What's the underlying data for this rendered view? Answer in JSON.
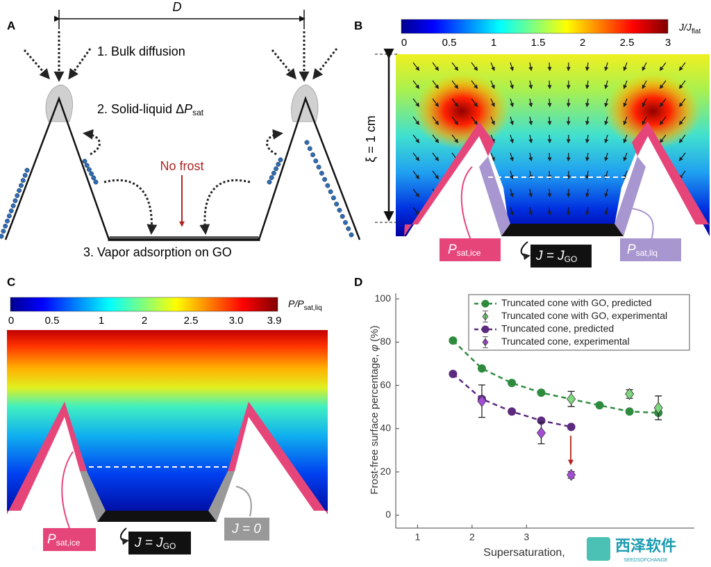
{
  "panels": {
    "A": {
      "letter": "A",
      "dimension": "D",
      "step1": "1. Bulk diffusion",
      "step2": "2. Solid-liquid Δ",
      "step2_symbol": "P",
      "step2_sub": "sat",
      "no_frost": "No frost",
      "step3": "3. Vapor adsorption on GO"
    },
    "B": {
      "letter": "B",
      "colorbar_ticks": [
        "0",
        "0.5",
        "1",
        "1.5",
        "2",
        "2.5",
        "3"
      ],
      "colorbar_label": "J/J",
      "colorbar_label_sub": "flat",
      "scale": "ξ = 1 cm",
      "label_ice": "P",
      "label_ice_sub": "sat,ice",
      "label_go": "J = J",
      "label_go_sub": "GO",
      "label_liq": "P",
      "label_liq_sub": "sat,liq"
    },
    "C": {
      "letter": "C",
      "colorbar_ticks": [
        "0",
        "0.5",
        "1",
        "2",
        "2.5",
        "3.0",
        "3.9"
      ],
      "colorbar_label": "P/P",
      "colorbar_label_sub": "sat,liq",
      "label_ice": "P",
      "label_ice_sub": "sat,ice",
      "label_go": "J = J",
      "label_go_sub": "GO",
      "label_zero": "J = 0"
    },
    "D": {
      "letter": "D"
    }
  },
  "chart_data": {
    "type": "scatter",
    "x_label": "Supersaturation,",
    "y_label": "Frost-free surface percentage, ",
    "y_label_symbol": "φ",
    "y_label_unit": " (%)",
    "xlim": [
      0.6,
      6.08
    ],
    "xticks": [
      1,
      2,
      3
    ],
    "ylim": [
      -6,
      102.6
    ],
    "yticks": [
      0,
      20,
      40,
      60,
      80,
      100
    ],
    "series": [
      {
        "name": "Truncated cone with GO, predicted",
        "color": "#2e8b3e",
        "marker": "circle",
        "dashed": true,
        "x": [
          1.65,
          2.18,
          2.73,
          3.27,
          4.34,
          4.89,
          5.42
        ],
        "values": [
          80.7,
          67.8,
          61.1,
          56.6,
          50.8,
          47.9,
          47.3
        ]
      },
      {
        "name": "Truncated cone with GO, experimental",
        "color": "#7fd67f",
        "marker": "diamond",
        "dashed": false,
        "x": [
          3.82,
          4.89,
          5.42
        ],
        "values": [
          53.7,
          56,
          49.6
        ],
        "errors": [
          3.5,
          2,
          5.5
        ]
      },
      {
        "name": "Truncated cone, predicted",
        "color": "#5c2a7e",
        "marker": "circle",
        "dashed": true,
        "x": [
          1.65,
          2.18,
          2.73,
          3.27,
          3.82
        ],
        "values": [
          65.3,
          53.7,
          47.9,
          43.7,
          40.8
        ]
      },
      {
        "name": "Truncated cone, experimental",
        "color": "#a64dd6",
        "marker": "diamond",
        "dashed": false,
        "x": [
          2.18,
          3.27,
          3.82
        ],
        "values": [
          52.7,
          38,
          18.6
        ],
        "errors": [
          7.5,
          5,
          1.5
        ]
      }
    ]
  },
  "watermark": {
    "name": "西泽软件",
    "sub": "SEEDSOFCHANGE"
  }
}
